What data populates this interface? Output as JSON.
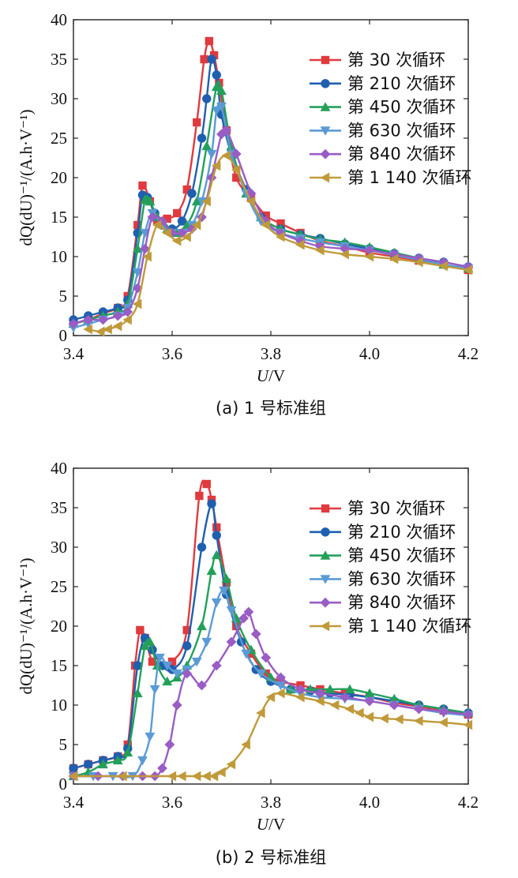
{
  "chart_data": [
    {
      "type": "line",
      "caption": "(a) 1 号标准组",
      "xlabel_italic": "U",
      "xlabel_rest": "/V",
      "ylabel": "dQ(dU)⁻¹/(A.h·V⁻¹)",
      "xlim": [
        3.4,
        4.2
      ],
      "ylim": [
        0,
        40
      ],
      "xticks": [
        "3.4",
        "3.6",
        "3.8",
        "4.0",
        "4.2"
      ],
      "yticks": [
        "0",
        "5",
        "10",
        "15",
        "20",
        "25",
        "30",
        "35",
        "40"
      ],
      "grid": false,
      "legend_position": "top-right",
      "series": [
        {
          "name": "第 30 次循环",
          "color": "#e03a3e",
          "marker": "square",
          "x": [
            3.4,
            3.43,
            3.46,
            3.49,
            3.51,
            3.53,
            3.54,
            3.555,
            3.57,
            3.59,
            3.61,
            3.63,
            3.65,
            3.665,
            3.675,
            3.685,
            3.695,
            3.71,
            3.73,
            3.76,
            3.79,
            3.82,
            3.86,
            3.9,
            3.95,
            4.0,
            4.05,
            4.1,
            4.15,
            4.2
          ],
          "y": [
            1.5,
            2.0,
            2.8,
            3.5,
            5.0,
            14.0,
            19.0,
            17.0,
            14.5,
            14.8,
            15.5,
            18.5,
            27.0,
            35.0,
            37.3,
            35.5,
            32.0,
            26.0,
            20.0,
            17.5,
            15.2,
            14.2,
            13.0,
            12.0,
            11.3,
            10.5,
            10.0,
            9.5,
            9.0,
            8.3
          ]
        },
        {
          "name": "第 210 次循环",
          "color": "#1f5fb0",
          "marker": "circle",
          "x": [
            3.4,
            3.43,
            3.46,
            3.49,
            3.51,
            3.53,
            3.54,
            3.55,
            3.565,
            3.58,
            3.6,
            3.62,
            3.64,
            3.66,
            3.67,
            3.68,
            3.69,
            3.7,
            3.72,
            3.75,
            3.78,
            3.82,
            3.86,
            3.9,
            3.95,
            4.0,
            4.05,
            4.1,
            4.15,
            4.2
          ],
          "y": [
            2.0,
            2.5,
            3.0,
            3.5,
            4.5,
            13.0,
            17.8,
            17.5,
            15.5,
            14.0,
            13.5,
            14.5,
            18.0,
            25.0,
            30.0,
            35.0,
            33.0,
            28.0,
            23.0,
            18.5,
            15.0,
            13.5,
            12.8,
            12.3,
            11.6,
            11.0,
            10.4,
            9.8,
            9.3,
            8.7
          ]
        },
        {
          "name": "第 450 次循环",
          "color": "#22a05a",
          "marker": "triangle-up",
          "x": [
            3.4,
            3.43,
            3.46,
            3.49,
            3.51,
            3.53,
            3.545,
            3.555,
            3.57,
            3.59,
            3.61,
            3.63,
            3.65,
            3.67,
            3.69,
            3.7,
            3.72,
            3.75,
            3.78,
            3.82,
            3.86,
            3.9,
            3.95,
            4.0,
            4.05,
            4.1,
            4.15,
            4.2
          ],
          "y": [
            1.5,
            2.0,
            2.5,
            3.0,
            4.0,
            11.0,
            17.2,
            17.0,
            15.0,
            13.5,
            13.0,
            14.0,
            17.0,
            24.0,
            31.5,
            31.0,
            24.0,
            18.0,
            15.0,
            13.5,
            12.8,
            12.2,
            11.8,
            11.2,
            10.5,
            9.8,
            9.0,
            8.5
          ]
        },
        {
          "name": "第 630 次循环",
          "color": "#5b9bd5",
          "marker": "triangle-down",
          "x": [
            3.4,
            3.43,
            3.46,
            3.49,
            3.51,
            3.53,
            3.545,
            3.56,
            3.58,
            3.6,
            3.62,
            3.64,
            3.66,
            3.68,
            3.69,
            3.7,
            3.72,
            3.75,
            3.78,
            3.82,
            3.86,
            3.9,
            3.95,
            4.0,
            4.05,
            4.1,
            4.15,
            4.2
          ],
          "y": [
            1.0,
            1.5,
            2.0,
            2.5,
            3.5,
            8.0,
            13.0,
            15.5,
            14.0,
            13.0,
            13.0,
            14.0,
            17.0,
            23.0,
            28.5,
            29.0,
            23.0,
            18.0,
            14.5,
            13.0,
            12.3,
            11.8,
            11.3,
            10.8,
            10.2,
            9.6,
            9.0,
            8.5
          ]
        },
        {
          "name": "第 840 次循环",
          "color": "#9a5cc5",
          "marker": "diamond",
          "x": [
            3.4,
            3.43,
            3.46,
            3.49,
            3.51,
            3.53,
            3.545,
            3.56,
            3.58,
            3.6,
            3.62,
            3.64,
            3.66,
            3.68,
            3.7,
            3.71,
            3.73,
            3.76,
            3.79,
            3.82,
            3.86,
            3.9,
            3.95,
            4.0,
            4.05,
            4.1,
            4.15,
            4.2
          ],
          "y": [
            1.5,
            2.0,
            2.0,
            2.5,
            3.0,
            6.0,
            11.0,
            15.0,
            14.5,
            13.0,
            13.0,
            13.5,
            15.0,
            20.0,
            25.5,
            26.0,
            23.0,
            18.0,
            14.5,
            13.0,
            12.0,
            11.3,
            11.0,
            10.8,
            10.3,
            9.8,
            9.3,
            8.7
          ]
        },
        {
          "name": "第 1 140 次循环",
          "color": "#c09a3a",
          "marker": "triangle-left",
          "x": [
            3.43,
            3.455,
            3.47,
            3.49,
            3.51,
            3.53,
            3.55,
            3.57,
            3.59,
            3.61,
            3.63,
            3.65,
            3.67,
            3.69,
            3.71,
            3.73,
            3.76,
            3.79,
            3.82,
            3.86,
            3.9,
            3.95,
            4.0,
            4.05,
            4.1,
            4.15,
            4.2
          ],
          "y": [
            0.8,
            0.5,
            0.8,
            1.2,
            2.0,
            4.0,
            10.0,
            14.0,
            13.0,
            12.0,
            12.5,
            14.0,
            17.0,
            21.5,
            22.8,
            21.0,
            17.0,
            14.0,
            12.5,
            11.5,
            10.8,
            10.3,
            10.0,
            9.7,
            9.3,
            8.8,
            8.3
          ]
        }
      ]
    },
    {
      "type": "line",
      "caption": "(b) 2 号标准组",
      "xlabel_italic": "U",
      "xlabel_rest": "/V",
      "ylabel": "dQ(dU)⁻¹/(A.h·V⁻¹)",
      "xlim": [
        3.4,
        4.2
      ],
      "ylim": [
        0,
        40
      ],
      "xticks": [
        "3.4",
        "3.6",
        "3.8",
        "4.0",
        "4.2"
      ],
      "yticks": [
        "0",
        "5",
        "10",
        "15",
        "20",
        "25",
        "30",
        "35",
        "40"
      ],
      "grid": false,
      "legend_position": "top-right",
      "series": [
        {
          "name": "第 30 次循环",
          "color": "#e03a3e",
          "marker": "square",
          "x": [
            3.4,
            3.43,
            3.46,
            3.49,
            3.51,
            3.525,
            3.535,
            3.545,
            3.56,
            3.58,
            3.6,
            3.63,
            3.655,
            3.67,
            3.68,
            3.69,
            3.71,
            3.73,
            3.76,
            3.79,
            3.82,
            3.86,
            3.9,
            3.95,
            4.0,
            4.05,
            4.1,
            4.15,
            4.2
          ],
          "y": [
            2.0,
            2.5,
            3.0,
            3.5,
            5.0,
            15.0,
            19.5,
            18.5,
            15.5,
            15.0,
            15.5,
            19.5,
            36.5,
            38.0,
            36.0,
            32.5,
            25.5,
            20.0,
            16.5,
            14.0,
            13.0,
            12.5,
            12.0,
            11.5,
            11.0,
            10.3,
            9.8,
            9.3,
            8.8
          ]
        },
        {
          "name": "第 210 次循环",
          "color": "#1f5fb0",
          "marker": "circle",
          "x": [
            3.4,
            3.43,
            3.46,
            3.49,
            3.51,
            3.53,
            3.545,
            3.56,
            3.58,
            3.6,
            3.63,
            3.66,
            3.68,
            3.69,
            3.71,
            3.74,
            3.77,
            3.8,
            3.84,
            3.88,
            3.92,
            3.96,
            4.0,
            4.05,
            4.1,
            4.15,
            4.2
          ],
          "y": [
            2.0,
            2.5,
            3.0,
            3.5,
            4.5,
            15.0,
            18.5,
            17.0,
            15.0,
            14.5,
            17.5,
            30.0,
            35.5,
            31.5,
            24.0,
            18.0,
            14.5,
            13.0,
            12.0,
            11.8,
            11.5,
            11.3,
            11.0,
            10.5,
            10.0,
            9.5,
            9.0
          ]
        },
        {
          "name": "第 450 次循环",
          "color": "#22a05a",
          "marker": "triangle-up",
          "x": [
            3.4,
            3.43,
            3.46,
            3.49,
            3.51,
            3.53,
            3.545,
            3.555,
            3.57,
            3.59,
            3.61,
            3.63,
            3.66,
            3.68,
            3.69,
            3.71,
            3.73,
            3.76,
            3.8,
            3.84,
            3.88,
            3.92,
            3.96,
            4.0,
            4.05,
            4.1,
            4.15,
            4.2
          ],
          "y": [
            1.0,
            1.5,
            2.5,
            3.0,
            4.0,
            11.5,
            17.5,
            18.0,
            15.0,
            13.0,
            13.5,
            15.0,
            20.0,
            27.0,
            29.0,
            26.0,
            21.0,
            17.0,
            13.5,
            12.0,
            12.0,
            12.0,
            12.0,
            11.5,
            10.8,
            10.0,
            9.5,
            9.0
          ]
        },
        {
          "name": "第 630 次循环",
          "color": "#5b9bd5",
          "marker": "triangle-down",
          "x": [
            3.4,
            3.44,
            3.48,
            3.52,
            3.54,
            3.555,
            3.565,
            3.575,
            3.59,
            3.61,
            3.63,
            3.65,
            3.67,
            3.69,
            3.705,
            3.72,
            3.75,
            3.78,
            3.82,
            3.86,
            3.9,
            3.95,
            4.0,
            4.05,
            4.1,
            4.15,
            4.2
          ],
          "y": [
            1.0,
            1.0,
            1.0,
            1.0,
            3.0,
            6.0,
            12.0,
            16.0,
            15.0,
            14.0,
            14.5,
            15.5,
            18.0,
            23.0,
            24.5,
            22.0,
            16.5,
            14.0,
            12.5,
            11.5,
            11.0,
            10.8,
            10.5,
            10.0,
            9.5,
            9.0,
            8.7
          ]
        },
        {
          "name": "第 840 次循环",
          "color": "#9a5cc5",
          "marker": "diamond",
          "x": [
            3.4,
            3.45,
            3.5,
            3.54,
            3.565,
            3.58,
            3.595,
            3.61,
            3.63,
            3.66,
            3.69,
            3.72,
            3.745,
            3.755,
            3.77,
            3.79,
            3.82,
            3.86,
            3.9,
            3.95,
            4.0,
            4.05,
            4.1,
            4.15,
            4.2
          ],
          "y": [
            1.0,
            1.0,
            1.0,
            1.0,
            1.0,
            2.0,
            5.0,
            10.0,
            14.0,
            12.5,
            15.0,
            18.0,
            21.0,
            21.8,
            19.0,
            16.0,
            13.5,
            12.0,
            11.5,
            11.0,
            10.5,
            10.0,
            9.5,
            9.2,
            8.8
          ]
        },
        {
          "name": "第 1 140 次循环",
          "color": "#c09a3a",
          "marker": "triangle-left",
          "x": [
            3.4,
            3.5,
            3.6,
            3.62,
            3.65,
            3.67,
            3.685,
            3.7,
            3.72,
            3.75,
            3.78,
            3.8,
            3.82,
            3.86,
            3.9,
            3.93,
            3.96,
            3.98,
            4.0,
            4.03,
            4.06,
            4.1,
            4.15,
            4.2
          ],
          "y": [
            1.0,
            1.0,
            1.0,
            1.0,
            1.0,
            1.0,
            1.0,
            1.5,
            2.5,
            5.0,
            9.0,
            11.0,
            11.5,
            11.0,
            10.5,
            10.0,
            9.5,
            9.0,
            8.5,
            8.3,
            8.2,
            8.0,
            7.8,
            7.5
          ]
        }
      ]
    }
  ]
}
